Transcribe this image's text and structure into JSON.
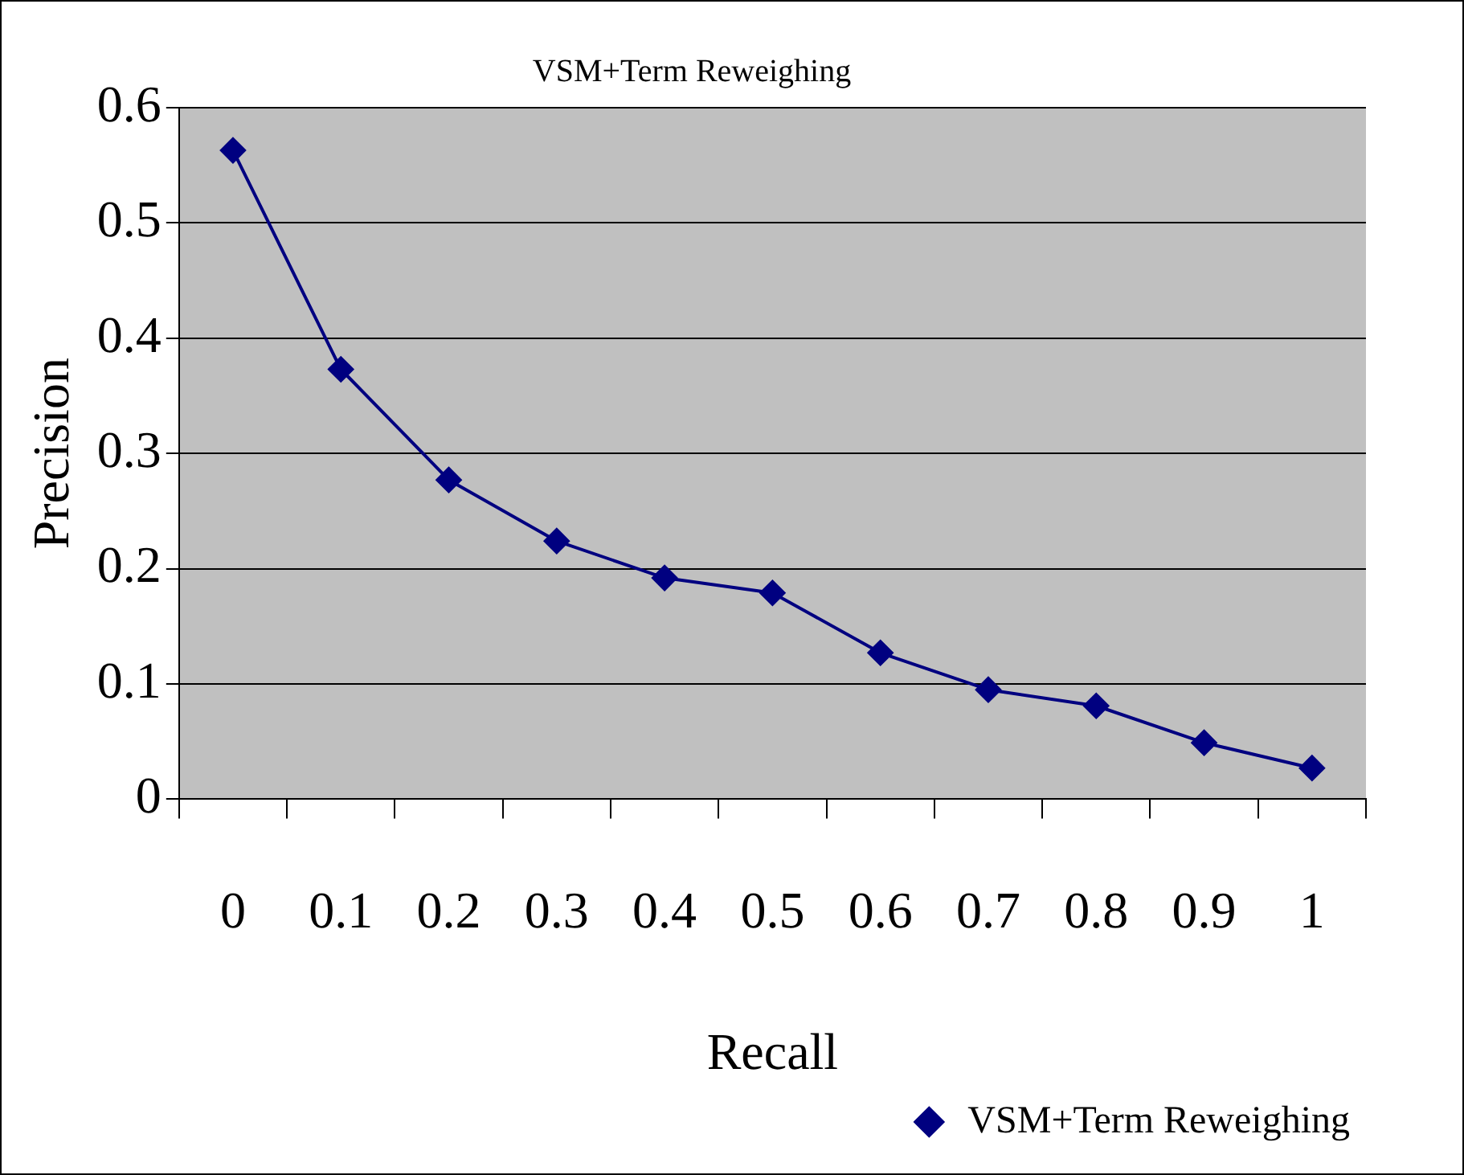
{
  "chart_data": {
    "type": "line",
    "title": "VSM+Term Reweighing",
    "xlabel": "Recall",
    "ylabel": "Precision",
    "categories": [
      "0",
      "0.1",
      "0.2",
      "0.3",
      "0.4",
      "0.5",
      "0.6",
      "0.7",
      "0.8",
      "0.9",
      "1"
    ],
    "series": [
      {
        "name": "VSM+Term Reweighing",
        "color": "#000080",
        "values": [
          0.563,
          0.373,
          0.277,
          0.224,
          0.192,
          0.179,
          0.127,
          0.095,
          0.081,
          0.049,
          0.027
        ]
      }
    ],
    "ylim": [
      0,
      0.6
    ],
    "yticks": [
      0,
      0.1,
      0.2,
      0.3,
      0.4,
      0.5,
      0.6
    ],
    "grid": "y",
    "legend": "bottom right",
    "marker": "diamond",
    "line_style": "solid"
  }
}
